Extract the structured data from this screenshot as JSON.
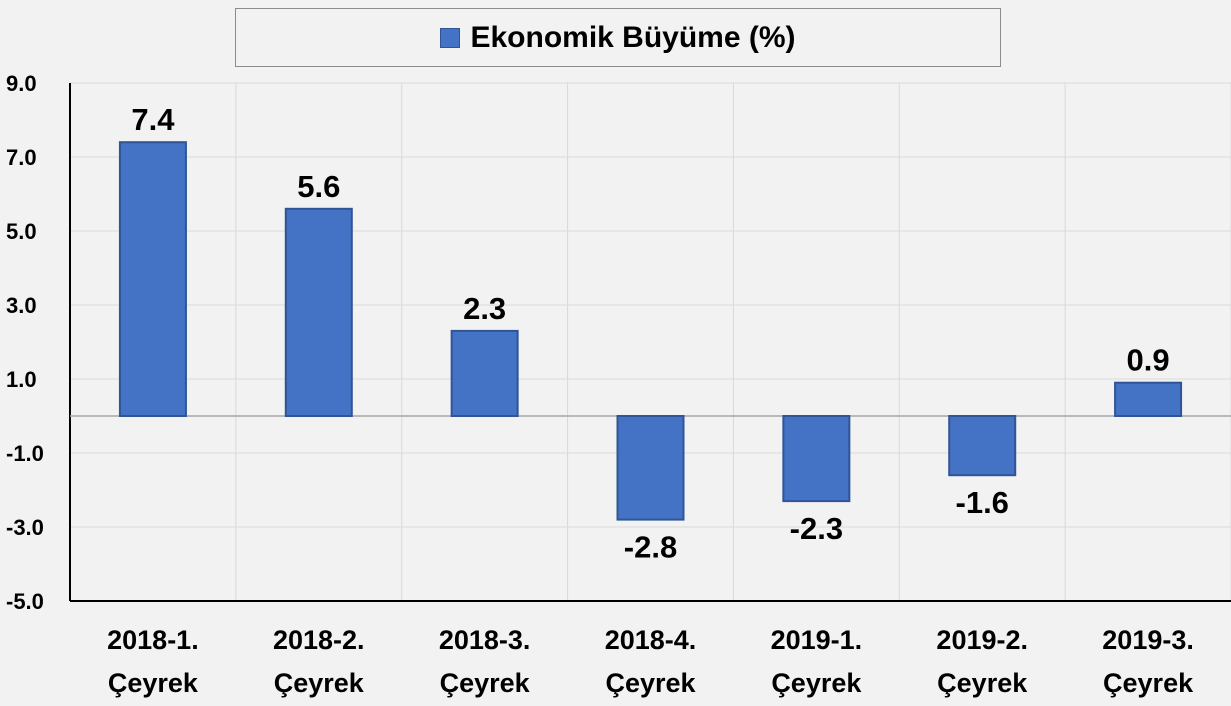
{
  "chart_data": {
    "type": "bar",
    "title": "",
    "xlabel": "",
    "ylabel": "",
    "legend": {
      "position": "top",
      "entries": [
        "Ekonomik Büyüme (%)"
      ]
    },
    "series": [
      {
        "name": "Ekonomik Büyüme (%)",
        "color": "#4472c4",
        "values": [
          7.4,
          5.6,
          2.3,
          -2.8,
          -2.3,
          -1.6,
          0.9
        ]
      }
    ],
    "categories": [
      [
        "2018-1.",
        "Çeyrek"
      ],
      [
        "2018-2.",
        "Çeyrek"
      ],
      [
        "2018-3.",
        "Çeyrek"
      ],
      [
        "2018-4.",
        "Çeyrek"
      ],
      [
        "2019-1.",
        "Çeyrek"
      ],
      [
        "2019-2.",
        "Çeyrek"
      ],
      [
        "2019-3.",
        "Çeyrek"
      ]
    ],
    "data_labels": [
      "7.4",
      "5.6",
      "2.3",
      "-2.8",
      "-2.3",
      "-1.6",
      "0.9"
    ],
    "ylim": [
      -5.0,
      9.0
    ],
    "yticks": [
      "9.0",
      "7.0",
      "5.0",
      "3.0",
      "1.0",
      "-1.0",
      "-3.0",
      "-5.0"
    ],
    "ytick_values": [
      9,
      7,
      5,
      3,
      1,
      -1,
      -3,
      -5
    ],
    "grid": true,
    "colors": {
      "bar": "#4472c4",
      "bar_border": "#2f5597",
      "grid": "#d9d9d9",
      "axis": "#000000",
      "background": "#f2f2f2"
    }
  }
}
